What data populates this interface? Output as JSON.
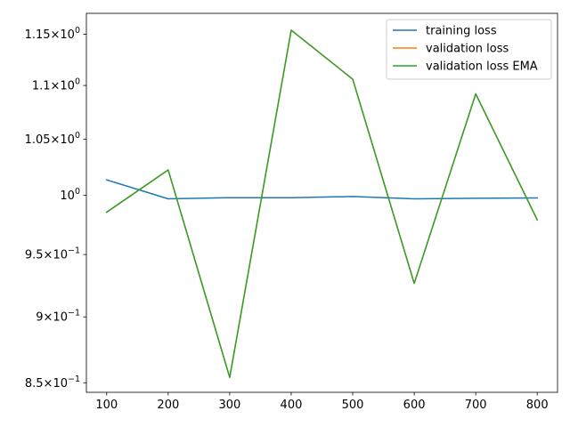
{
  "chart_data": {
    "type": "line",
    "title": "",
    "xlabel": "",
    "ylabel": "",
    "yscale": "log",
    "x": [
      100,
      200,
      300,
      400,
      500,
      600,
      700,
      800
    ],
    "xlim": [
      67,
      833
    ],
    "ylim": [
      0.843,
      1.171
    ],
    "xticks": [
      {
        "value": 100,
        "label": "100"
      },
      {
        "value": 200,
        "label": "200"
      },
      {
        "value": 300,
        "label": "300"
      },
      {
        "value": 400,
        "label": "400"
      },
      {
        "value": 500,
        "label": "500"
      },
      {
        "value": 600,
        "label": "600"
      },
      {
        "value": 700,
        "label": "700"
      },
      {
        "value": 800,
        "label": "800"
      }
    ],
    "yticks": [
      {
        "value": 0.85,
        "mant": "8.5",
        "sup": "−1"
      },
      {
        "value": 0.9,
        "mant": "9",
        "sup": "−1"
      },
      {
        "value": 0.95,
        "mant": "9.5",
        "sup": "−1"
      },
      {
        "value": 1.0,
        "mant": "",
        "sup": "0"
      },
      {
        "value": 1.05,
        "mant": "1.05",
        "sup": "0"
      },
      {
        "value": 1.1,
        "mant": "1.1",
        "sup": "0"
      },
      {
        "value": 1.15,
        "mant": "1.15",
        "sup": "0"
      }
    ],
    "legend_position": "upper right",
    "grid": false,
    "series": [
      {
        "name": "training loss",
        "color": "#1f77b4",
        "values": [
          1.0135,
          0.997,
          0.998,
          0.998,
          0.999,
          0.997,
          0.9975,
          0.9978
        ]
      },
      {
        "name": "validation loss",
        "color": "#ff7f0e",
        "values": [
          0.9855,
          1.0223,
          0.854,
          1.154,
          1.106,
          0.9265,
          1.092,
          0.979
        ]
      },
      {
        "name": "validation loss EMA",
        "color": "#2ca02c",
        "values": [
          0.9855,
          1.0223,
          0.854,
          1.154,
          1.106,
          0.9265,
          1.092,
          0.979
        ]
      }
    ]
  }
}
